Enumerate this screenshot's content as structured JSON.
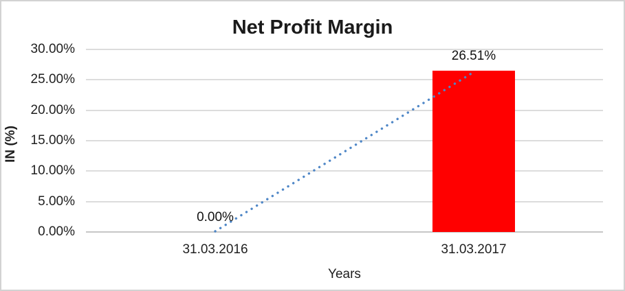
{
  "chart_data": {
    "type": "bar",
    "title": "Net Profit Margin",
    "xlabel": "Years",
    "ylabel": "IN (%)",
    "categories": [
      "31.03.2016",
      "31.03.2017"
    ],
    "series": [
      {
        "name": "Net Profit Margin",
        "values": [
          0.0,
          26.51
        ]
      }
    ],
    "data_labels": [
      "0.00%",
      "26.51%"
    ],
    "ytick_labels": [
      "0.00%",
      "5.00%",
      "10.00%",
      "15.00%",
      "20.00%",
      "25.00%",
      "30.00%"
    ],
    "ylim": [
      0,
      30
    ],
    "ytick_step": 5,
    "grid": true,
    "legend": "none",
    "trendline": {
      "style": "dotted",
      "shape": "linear",
      "from_category_index": 0,
      "from_value": 0.0,
      "to_category_index": 1,
      "to_value": 26.51
    },
    "colors": {
      "bar": "#FF0000",
      "trendline": "#4F87C7",
      "gridline": "#DCDCDC",
      "text": "#1F1F1F",
      "border": "#D2D2D2"
    }
  }
}
